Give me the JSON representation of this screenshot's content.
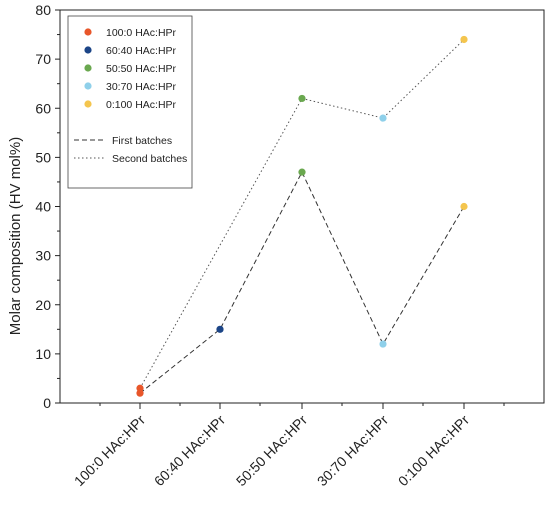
{
  "chart_data": {
    "type": "scatter",
    "title": "",
    "xlabel": "",
    "ylabel": "Molar composition (HV mol%)",
    "categories": [
      "100:0 HAc:HPr",
      "60:40 HAc:HPr",
      "50:50 HAc:HPr",
      "30:70 HAc:HPr",
      "0:100 HAc:HPr"
    ],
    "ylim": [
      0,
      80
    ],
    "yticks": [
      0,
      10,
      20,
      30,
      40,
      50,
      60,
      70,
      80
    ],
    "grid": false,
    "legend_position": "top-left",
    "points": [
      {
        "name": "100:0 HAc:HPr",
        "color": "#e8562a",
        "values": [
          2,
          3
        ]
      },
      {
        "name": "60:40 HAc:HPr",
        "color": "#1c4587",
        "values": [
          15
        ]
      },
      {
        "name": "50:50 HAc:HPr",
        "color": "#6aa84f",
        "values": [
          47,
          62
        ]
      },
      {
        "name": "30:70 HAc:HPr",
        "color": "#8fd0ea",
        "values": [
          12,
          58
        ]
      },
      {
        "name": "0:100 HAc:HPr",
        "color": "#f4c54e",
        "values": [
          40,
          74
        ]
      }
    ],
    "lines": [
      {
        "name": "First batches",
        "style": "dashed",
        "color": "#333333",
        "values": [
          2,
          15,
          47,
          12,
          40
        ]
      },
      {
        "name": "Second batches",
        "style": "dotted",
        "color": "#555555",
        "values": [
          3,
          null,
          62,
          58,
          74
        ]
      }
    ]
  }
}
